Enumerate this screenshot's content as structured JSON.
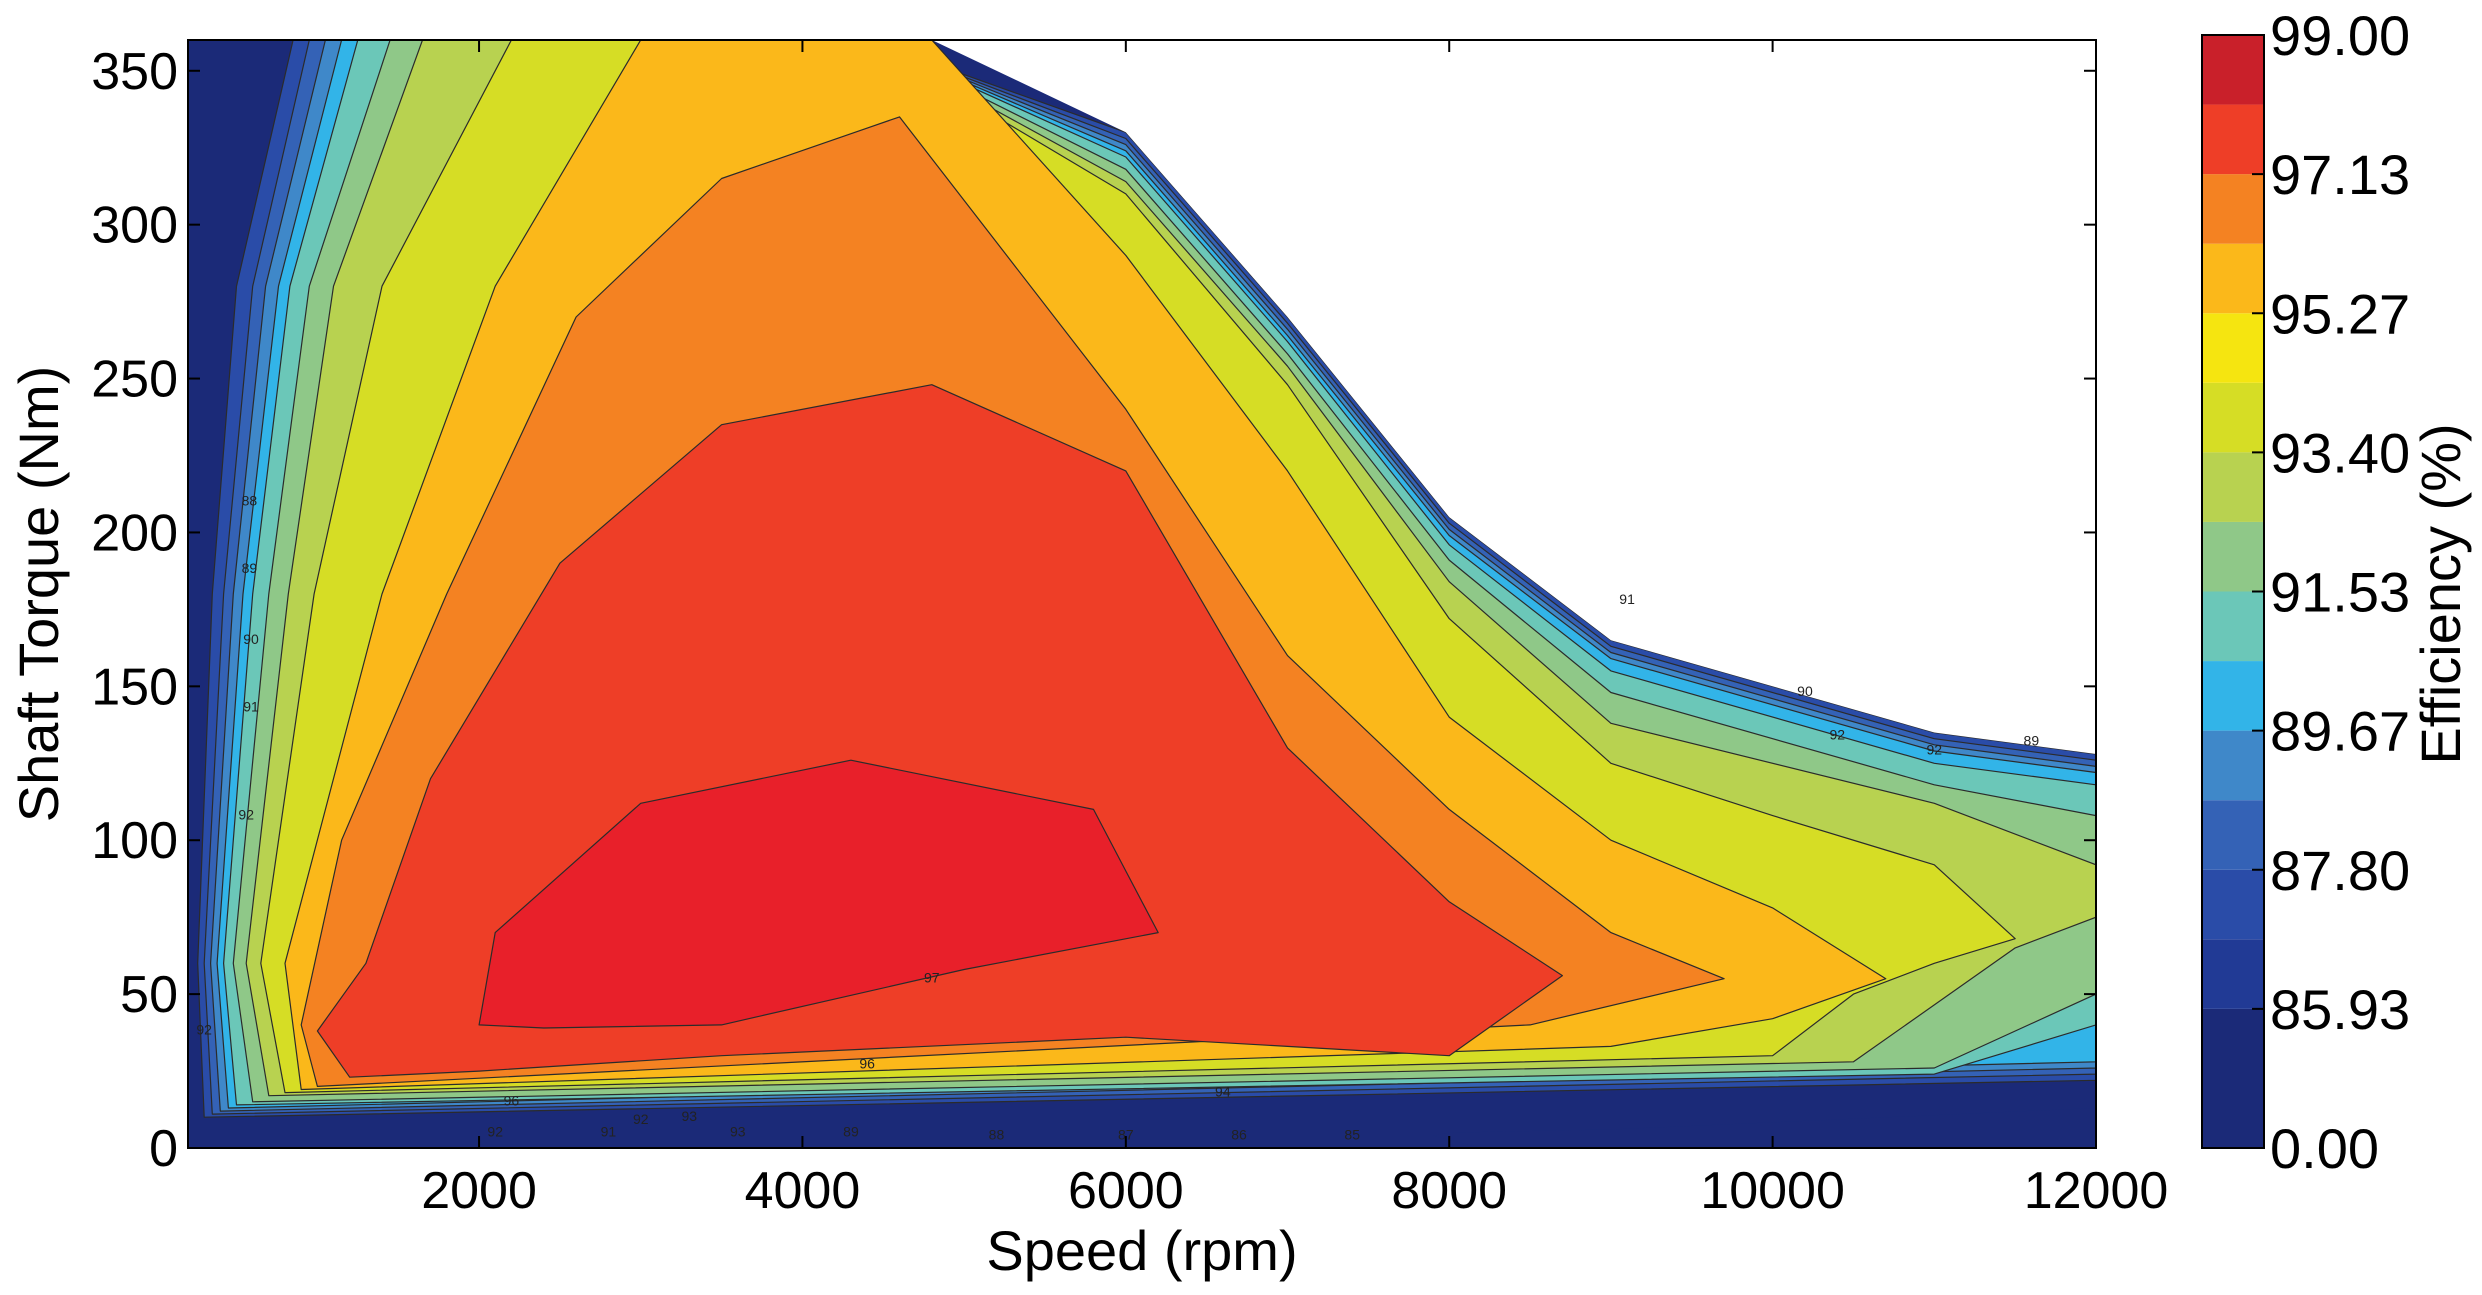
{
  "chart_data": {
    "type": "contour",
    "xlabel": "Speed  (rpm)",
    "ylabel": "Shaft Torque  (Nm)",
    "xlim": [
      200,
      12000
    ],
    "ylim": [
      0,
      360
    ],
    "x_ticks": [
      2000,
      4000,
      6000,
      8000,
      10000,
      12000
    ],
    "y_ticks": [
      0,
      50,
      100,
      150,
      200,
      250,
      300,
      350
    ],
    "colorbar": {
      "label": "Efficiency (%)",
      "tick_labels": [
        "0.00",
        "85.93",
        "87.80",
        "89.67",
        "91.53",
        "93.40",
        "95.27",
        "97.13",
        "99.00"
      ],
      "bands": [
        {
          "from": 0.0,
          "to": 85.93,
          "color": "#1b2a78"
        },
        {
          "from": 85.93,
          "to": 86.87,
          "color": "#213a95"
        },
        {
          "from": 86.87,
          "to": 87.8,
          "color": "#2a4ca8"
        },
        {
          "from": 87.8,
          "to": 88.73,
          "color": "#3462b6"
        },
        {
          "from": 88.73,
          "to": 89.67,
          "color": "#3f88c9"
        },
        {
          "from": 89.67,
          "to": 90.6,
          "color": "#32b4e8"
        },
        {
          "from": 90.6,
          "to": 91.53,
          "color": "#6bc7b8"
        },
        {
          "from": 91.53,
          "to": 92.47,
          "color": "#8fc888"
        },
        {
          "from": 92.47,
          "to": 93.4,
          "color": "#b8d250"
        },
        {
          "from": 93.4,
          "to": 94.33,
          "color": "#d6dd25"
        },
        {
          "from": 94.33,
          "to": 95.27,
          "color": "#f5e510"
        },
        {
          "from": 95.27,
          "to": 96.2,
          "color": "#fbb81a"
        },
        {
          "from": 96.2,
          "to": 97.13,
          "color": "#f48222"
        },
        {
          "from": 97.13,
          "to": 98.07,
          "color": "#ee3e27"
        },
        {
          "from": 98.07,
          "to": 99.0,
          "color": "#c9202a"
        }
      ]
    },
    "regions": [
      {
        "level": "<=87",
        "color": "#1b2a78",
        "points": [
          [
            200,
            0
          ],
          [
            12000,
            0
          ],
          [
            12000,
            360
          ],
          [
            200,
            360
          ]
        ]
      },
      {
        "level": "88",
        "color": "#2a4ca8",
        "points": [
          [
            300,
            10
          ],
          [
            12000,
            22
          ],
          [
            12000,
            128
          ],
          [
            11000,
            135
          ],
          [
            9000,
            165
          ],
          [
            8000,
            205
          ],
          [
            7000,
            270
          ],
          [
            6000,
            330
          ],
          [
            4400,
            360
          ],
          [
            850,
            360
          ],
          [
            500,
            280
          ],
          [
            350,
            180
          ],
          [
            260,
            60
          ]
        ]
      },
      {
        "level": "89",
        "color": "#3462b6",
        "points": [
          [
            350,
            11
          ],
          [
            12000,
            24
          ],
          [
            12000,
            126
          ],
          [
            11000,
            133
          ],
          [
            9000,
            163
          ],
          [
            8000,
            203
          ],
          [
            7000,
            268
          ],
          [
            6000,
            328
          ],
          [
            4400,
            360
          ],
          [
            950,
            360
          ],
          [
            600,
            280
          ],
          [
            420,
            180
          ],
          [
            300,
            60
          ]
        ]
      },
      {
        "level": "90",
        "color": "#3f88c9",
        "points": [
          [
            400,
            12
          ],
          [
            12000,
            26
          ],
          [
            12000,
            124
          ],
          [
            11000,
            131
          ],
          [
            9000,
            161
          ],
          [
            8000,
            201
          ],
          [
            7000,
            266
          ],
          [
            6000,
            326
          ],
          [
            4400,
            360
          ],
          [
            1050,
            360
          ],
          [
            680,
            280
          ],
          [
            480,
            180
          ],
          [
            340,
            60
          ]
        ]
      },
      {
        "level": "90.5",
        "color": "#32b4e8",
        "points": [
          [
            450,
            13
          ],
          [
            12000,
            28
          ],
          [
            12000,
            122
          ],
          [
            11000,
            129
          ],
          [
            9000,
            159
          ],
          [
            8000,
            199
          ],
          [
            7000,
            264
          ],
          [
            6000,
            324
          ],
          [
            4400,
            360
          ],
          [
            1150,
            360
          ],
          [
            760,
            280
          ],
          [
            540,
            180
          ],
          [
            380,
            60
          ]
        ]
      },
      {
        "level": "91",
        "color": "#6bc7b8",
        "points": [
          [
            500,
            14
          ],
          [
            11000,
            24
          ],
          [
            12000,
            40
          ],
          [
            12000,
            118
          ],
          [
            11000,
            125
          ],
          [
            9000,
            155
          ],
          [
            8000,
            196
          ],
          [
            7000,
            262
          ],
          [
            6000,
            322
          ],
          [
            4400,
            360
          ],
          [
            1250,
            360
          ],
          [
            830,
            280
          ],
          [
            600,
            180
          ],
          [
            420,
            60
          ]
        ]
      },
      {
        "level": "92",
        "color": "#8fc888",
        "points": [
          [
            600,
            15
          ],
          [
            11000,
            26
          ],
          [
            12000,
            50
          ],
          [
            12000,
            108
          ],
          [
            11000,
            118
          ],
          [
            9000,
            148
          ],
          [
            8000,
            191
          ],
          [
            7000,
            258
          ],
          [
            6000,
            318
          ],
          [
            4400,
            360
          ],
          [
            1450,
            360
          ],
          [
            950,
            280
          ],
          [
            700,
            180
          ],
          [
            480,
            60
          ]
        ]
      },
      {
        "level": "93",
        "color": "#b8d250",
        "points": [
          [
            700,
            17
          ],
          [
            10500,
            28
          ],
          [
            11500,
            65
          ],
          [
            12000,
            75
          ],
          [
            12000,
            92
          ],
          [
            11000,
            112
          ],
          [
            9000,
            138
          ],
          [
            8000,
            184
          ],
          [
            7000,
            254
          ],
          [
            6000,
            314
          ],
          [
            4400,
            360
          ],
          [
            1650,
            360
          ],
          [
            1100,
            280
          ],
          [
            820,
            180
          ],
          [
            560,
            60
          ]
        ]
      },
      {
        "level": "94",
        "color": "#d6dd25",
        "points": [
          [
            800,
            18
          ],
          [
            10000,
            30
          ],
          [
            10500,
            50
          ],
          [
            11000,
            60
          ],
          [
            11500,
            68
          ],
          [
            11000,
            92
          ],
          [
            10000,
            108
          ],
          [
            9000,
            125
          ],
          [
            8000,
            172
          ],
          [
            7000,
            248
          ],
          [
            6000,
            310
          ],
          [
            4400,
            360
          ],
          [
            2200,
            360
          ],
          [
            1400,
            280
          ],
          [
            980,
            180
          ],
          [
            650,
            60
          ]
        ]
      },
      {
        "level": "95",
        "color": "#fbb81a",
        "points": [
          [
            900,
            19
          ],
          [
            9000,
            33
          ],
          [
            10000,
            42
          ],
          [
            10700,
            55
          ],
          [
            10000,
            78
          ],
          [
            9000,
            100
          ],
          [
            8000,
            140
          ],
          [
            7000,
            220
          ],
          [
            6000,
            290
          ],
          [
            4800,
            360
          ],
          [
            3000,
            360
          ],
          [
            2100,
            280
          ],
          [
            1400,
            180
          ],
          [
            800,
            60
          ]
        ]
      },
      {
        "level": "96",
        "color": "#f48222",
        "points": [
          [
            1000,
            20
          ],
          [
            7000,
            36
          ],
          [
            8500,
            40
          ],
          [
            9700,
            55
          ],
          [
            9000,
            70
          ],
          [
            8000,
            110
          ],
          [
            7000,
            160
          ],
          [
            6000,
            240
          ],
          [
            4600,
            335
          ],
          [
            3500,
            315
          ],
          [
            2600,
            270
          ],
          [
            1800,
            180
          ],
          [
            1150,
            100
          ],
          [
            900,
            40
          ]
        ]
      },
      {
        "level": "97",
        "color": "#ee3e27",
        "points": [
          [
            1200,
            23
          ],
          [
            2000,
            25
          ],
          [
            3500,
            30
          ],
          [
            6000,
            36
          ],
          [
            7000,
            33
          ],
          [
            8000,
            30
          ],
          [
            8700,
            56
          ],
          [
            8000,
            80
          ],
          [
            7000,
            130
          ],
          [
            6000,
            220
          ],
          [
            4800,
            248
          ],
          [
            3500,
            235
          ],
          [
            2500,
            190
          ],
          [
            1700,
            120
          ],
          [
            1300,
            60
          ],
          [
            1000,
            38
          ]
        ]
      },
      {
        "level": "98",
        "color": "#e8202a",
        "points": [
          [
            2000,
            40
          ],
          [
            2400,
            39
          ],
          [
            3500,
            40
          ],
          [
            5000,
            58
          ],
          [
            6200,
            70
          ],
          [
            6000,
            90
          ],
          [
            5800,
            110
          ],
          [
            4300,
            126
          ],
          [
            3000,
            112
          ],
          [
            2100,
            70
          ]
        ]
      }
    ],
    "blank_envelope": [
      [
        12000,
        360
      ],
      [
        12000,
        128
      ],
      [
        11000,
        135
      ],
      [
        9000,
        165
      ],
      [
        8000,
        205
      ],
      [
        7000,
        270
      ],
      [
        6000,
        330
      ],
      [
        4800,
        360
      ]
    ],
    "blank_low_region": [
      [
        7900,
        4
      ],
      [
        8200,
        0
      ],
      [
        12000,
        0
      ],
      [
        12000,
        13
      ],
      [
        9000,
        6
      ],
      [
        8000,
        5
      ]
    ],
    "contour_labels": [
      {
        "text": "97",
        "x": 4800,
        "y": 55
      },
      {
        "text": "96",
        "x": 4400,
        "y": 27
      },
      {
        "text": "96",
        "x": 2200,
        "y": 15
      },
      {
        "text": "94",
        "x": 6600,
        "y": 18
      },
      {
        "text": "93",
        "x": 3300,
        "y": 10
      },
      {
        "text": "92",
        "x": 3000,
        "y": 9
      },
      {
        "text": "92",
        "x": 2100,
        "y": 5
      },
      {
        "text": "91",
        "x": 2800,
        "y": 5
      },
      {
        "text": "93",
        "x": 3600,
        "y": 5
      },
      {
        "text": "89",
        "x": 4300,
        "y": 5
      },
      {
        "text": "88",
        "x": 5200,
        "y": 4
      },
      {
        "text": "87",
        "x": 6000,
        "y": 4
      },
      {
        "text": "86",
        "x": 6700,
        "y": 4
      },
      {
        "text": "85",
        "x": 7400,
        "y": 4
      },
      {
        "text": "92",
        "x": 300,
        "y": 38
      },
      {
        "text": "92",
        "x": 560,
        "y": 108
      },
      {
        "text": "91",
        "x": 590,
        "y": 143
      },
      {
        "text": "90",
        "x": 590,
        "y": 165
      },
      {
        "text": "89",
        "x": 580,
        "y": 188
      },
      {
        "text": "88",
        "x": 580,
        "y": 210
      },
      {
        "text": "91",
        "x": 9100,
        "y": 178
      },
      {
        "text": "90",
        "x": 10200,
        "y": 148
      },
      {
        "text": "92",
        "x": 10400,
        "y": 134
      },
      {
        "text": "92",
        "x": 11000,
        "y": 129
      },
      {
        "text": "89",
        "x": 11600,
        "y": 132
      }
    ]
  }
}
